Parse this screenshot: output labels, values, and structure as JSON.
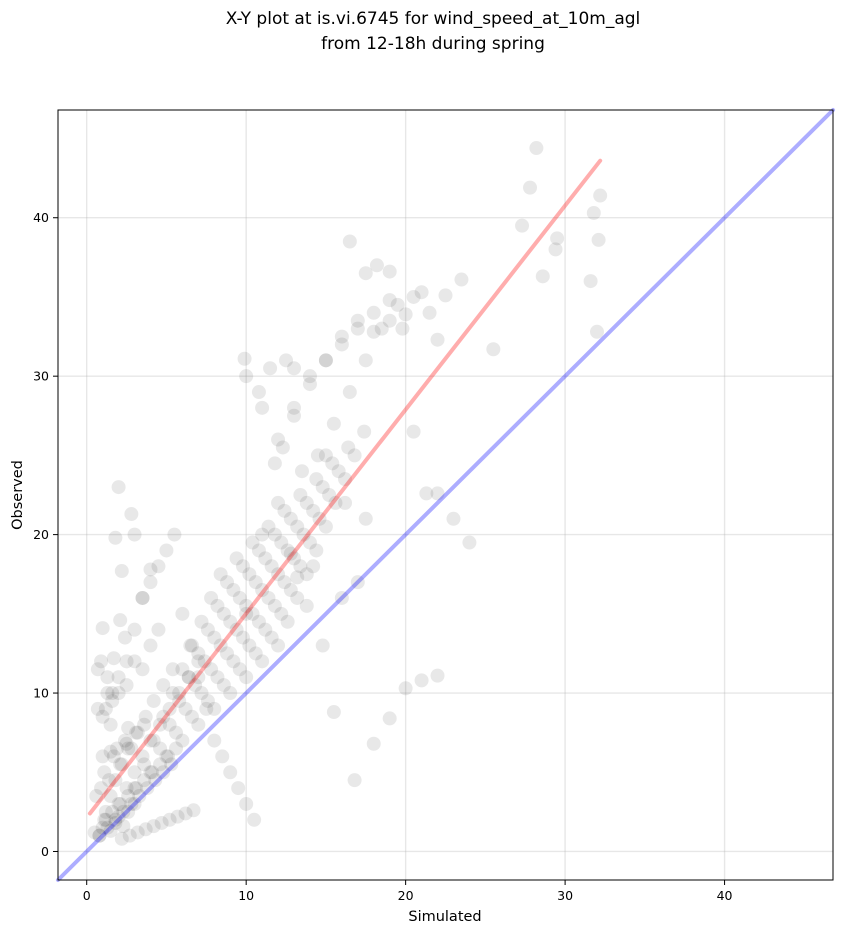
{
  "chart_data": {
    "type": "scatter",
    "title": "X-Y plot at is.vi.6745 for wind_speed_at_10m_agl",
    "subtitle": "from 12-18h during spring",
    "xlabel": "Simulated",
    "ylabel": "Observed",
    "xlim": [
      -1.8,
      46.8
    ],
    "ylim": [
      -1.8,
      46.8
    ],
    "xticks": [
      "0",
      "10",
      "20",
      "30",
      "40"
    ],
    "yticks": [
      "0",
      "10",
      "20",
      "30",
      "40"
    ],
    "grid": true,
    "point_color": "#000000",
    "point_opacity": 0.09,
    "series": [
      {
        "kind": "points",
        "x": [
          0.5,
          0.8,
          1.0,
          1.2,
          1.5,
          1.8,
          2.0,
          2.3,
          2.6,
          3.0,
          0.6,
          0.9,
          1.1,
          1.4,
          1.7,
          2.1,
          2.4,
          2.8,
          3.2,
          3.6,
          0.7,
          1.0,
          1.3,
          1.6,
          2.0,
          2.5,
          3.0,
          3.5,
          4.0,
          4.5,
          1.2,
          1.5,
          1.8,
          2.2,
          2.6,
          3.1,
          3.7,
          4.2,
          4.8,
          5.4,
          2.0,
          2.5,
          3.0,
          3.5,
          4.0,
          4.6,
          5.2,
          5.8,
          6.4,
          7.0,
          3.0,
          3.6,
          4.2,
          4.8,
          5.4,
          6.0,
          6.6,
          7.2,
          7.8,
          8.4,
          4.0,
          4.6,
          5.2,
          5.8,
          6.4,
          7.0,
          7.6,
          8.2,
          8.8,
          9.4,
          5.0,
          5.6,
          6.2,
          6.8,
          7.4,
          8.0,
          8.6,
          9.2,
          9.8,
          10.4,
          6.0,
          6.6,
          7.2,
          7.8,
          8.4,
          9.0,
          9.6,
          10.2,
          10.8,
          11.4,
          7.0,
          7.6,
          8.2,
          8.8,
          9.4,
          10.0,
          10.6,
          11.2,
          11.8,
          12.4,
          8.0,
          8.6,
          9.2,
          9.8,
          10.4,
          11.0,
          11.6,
          12.2,
          12.8,
          13.4,
          9.0,
          9.6,
          10.2,
          10.8,
          11.4,
          12.0,
          12.6,
          13.2,
          13.8,
          14.4,
          10.0,
          10.6,
          11.2,
          11.8,
          12.4,
          13.0,
          13.6,
          14.2,
          14.8,
          15.4,
          11.0,
          11.6,
          12.2,
          12.8,
          13.4,
          14.0,
          14.6,
          15.2,
          15.8,
          16.4,
          12.0,
          12.6,
          13.2,
          13.8,
          14.4,
          15.0,
          15.6,
          16.2,
          16.8,
          17.4,
          1.0,
          1.5,
          2.0,
          2.5,
          3.0,
          3.5,
          4.0,
          4.5,
          5.0,
          5.5,
          6.0,
          6.5,
          7.0,
          7.5,
          8.0,
          8.5,
          9.0,
          9.5,
          10.0,
          10.5,
          0.8,
          1.3,
          1.8,
          2.3,
          2.8,
          3.3,
          3.8,
          4.3,
          4.8,
          5.3,
          1.1,
          1.6,
          2.1,
          2.6,
          3.1,
          3.6,
          4.1,
          4.6,
          5.1,
          5.6,
          2.2,
          2.7,
          3.2,
          3.7,
          4.2,
          4.7,
          5.2,
          5.7,
          6.2,
          6.7,
          13.0,
          14.0,
          15.0,
          16.0,
          17.0,
          18.0,
          19.0,
          20.0,
          21.0,
          22.0,
          14.5,
          15.5,
          16.5,
          17.5,
          18.5,
          19.5,
          20.5,
          21.5,
          22.5,
          23.5,
          10.0,
          11.0,
          12.0,
          13.0,
          14.0,
          15.0,
          16.0,
          17.0,
          18.0,
          19.0,
          16.5,
          17.5,
          18.2,
          19.0,
          19.8,
          20.5,
          21.3,
          22.0,
          23.0,
          24.0,
          25.5,
          27.3,
          28.2,
          28.6,
          29.5,
          29.4,
          27.8,
          31.8,
          31.6,
          32.2,
          32.1,
          32.0,
          9.9,
          12.5,
          13.0,
          10.8,
          11.5,
          12.3,
          11.8,
          15.0,
          16.2,
          17.5,
          14.2,
          16.0,
          17.0,
          13.5,
          12.0,
          11.0,
          10.0,
          19.0,
          20.0,
          21.0,
          22.0,
          18.0,
          15.5,
          16.8,
          14.8,
          13.2,
          12.8,
          13.8,
          2.0,
          3.0,
          1.5,
          2.5,
          1.0,
          4.0,
          3.5,
          2.2,
          1.8,
          2.8,
          0.9,
          1.3,
          1.7,
          2.1,
          1.2,
          1.6,
          2.4,
          0.7,
          1.9,
          2.6
        ],
        "y": [
          1.2,
          1.0,
          1.5,
          2.0,
          1.3,
          1.8,
          2.2,
          1.6,
          2.5,
          3.0,
          3.5,
          4.0,
          5.0,
          4.5,
          6.0,
          5.5,
          7.0,
          6.5,
          7.5,
          8.0,
          9.0,
          8.5,
          10.0,
          9.5,
          11.0,
          10.5,
          12.0,
          11.5,
          13.0,
          14.0,
          2.5,
          3.5,
          4.5,
          5.5,
          6.5,
          7.5,
          8.5,
          9.5,
          10.5,
          11.5,
          3.0,
          4.0,
          5.0,
          6.0,
          7.0,
          8.0,
          9.0,
          10.0,
          11.0,
          12.0,
          4.0,
          5.5,
          7.0,
          8.5,
          10.0,
          11.5,
          13.0,
          14.5,
          16.0,
          17.5,
          5.0,
          6.5,
          8.0,
          9.5,
          11.0,
          12.5,
          14.0,
          15.5,
          17.0,
          18.5,
          6.0,
          7.5,
          9.0,
          10.5,
          12.0,
          13.5,
          15.0,
          16.5,
          18.0,
          19.5,
          7.0,
          8.5,
          10.0,
          11.5,
          13.0,
          14.5,
          16.0,
          17.5,
          19.0,
          20.5,
          8.0,
          9.5,
          11.0,
          12.5,
          14.0,
          15.5,
          17.0,
          18.5,
          20.0,
          21.5,
          9.0,
          10.5,
          12.0,
          13.5,
          15.0,
          16.5,
          18.0,
          19.5,
          21.0,
          22.5,
          10.0,
          11.5,
          13.0,
          14.5,
          16.0,
          17.5,
          19.0,
          20.5,
          22.0,
          23.5,
          11.0,
          12.5,
          14.0,
          15.5,
          17.0,
          18.5,
          20.0,
          21.5,
          23.0,
          24.5,
          12.0,
          13.5,
          15.0,
          16.5,
          18.0,
          19.5,
          21.0,
          22.5,
          24.0,
          25.5,
          13.0,
          14.5,
          16.0,
          17.5,
          19.0,
          20.5,
          22.0,
          23.5,
          25.0,
          26.5,
          6.0,
          8.0,
          10.0,
          12.0,
          14.0,
          16.0,
          17.0,
          18.0,
          19.0,
          20.0,
          15.0,
          13.0,
          11.0,
          9.0,
          7.0,
          6.0,
          5.0,
          4.0,
          3.0,
          2.0,
          1.0,
          1.5,
          2.0,
          2.5,
          3.0,
          3.5,
          4.0,
          4.5,
          5.0,
          5.5,
          2.0,
          2.5,
          3.0,
          3.5,
          4.0,
          4.5,
          5.0,
          5.5,
          6.0,
          6.5,
          0.8,
          1.0,
          1.2,
          1.4,
          1.6,
          1.8,
          2.0,
          2.2,
          2.4,
          2.6,
          28.0,
          30.0,
          31.0,
          32.0,
          33.0,
          34.0,
          33.5,
          33.9,
          35.3,
          32.3,
          25.0,
          27.0,
          29.0,
          31.0,
          33.0,
          34.5,
          35.0,
          34.0,
          35.1,
          36.1,
          30.0,
          28.0,
          26.0,
          27.5,
          29.5,
          31.0,
          32.5,
          33.5,
          32.8,
          34.8,
          38.5,
          36.5,
          37.0,
          36.6,
          33.0,
          26.5,
          22.6,
          22.6,
          21.0,
          19.5,
          31.7,
          39.5,
          44.4,
          36.3,
          38.7,
          38.0,
          41.9,
          40.3,
          36.0,
          41.4,
          38.6,
          32.8,
          31.1,
          31.0,
          30.5,
          29.0,
          30.5,
          25.5,
          24.5,
          25.0,
          22.0,
          21.0,
          18.0,
          16.0,
          17.0,
          24.0,
          22.0,
          20.0,
          15.0,
          8.4,
          10.3,
          10.8,
          11.1,
          6.8,
          8.8,
          4.5,
          13.0,
          17.3,
          18.8,
          15.5,
          23.0,
          20.0,
          6.3,
          6.8,
          14.1,
          17.8,
          16.0,
          17.7,
          19.8,
          21.3,
          12.0,
          11.0,
          12.2,
          14.6,
          9.0,
          10.0,
          13.5,
          11.5,
          6.5,
          7.8
        ]
      },
      {
        "kind": "line",
        "name": "",
        "color": "#ff0000",
        "opacity": 0.32,
        "x": [
          0.2,
          32.2
        ],
        "y": [
          2.4,
          43.6
        ]
      },
      {
        "kind": "line",
        "name": "",
        "color": "#0000ff",
        "opacity": 0.32,
        "x": [
          -1.8,
          46.8
        ],
        "y": [
          -1.8,
          46.8
        ]
      }
    ]
  }
}
